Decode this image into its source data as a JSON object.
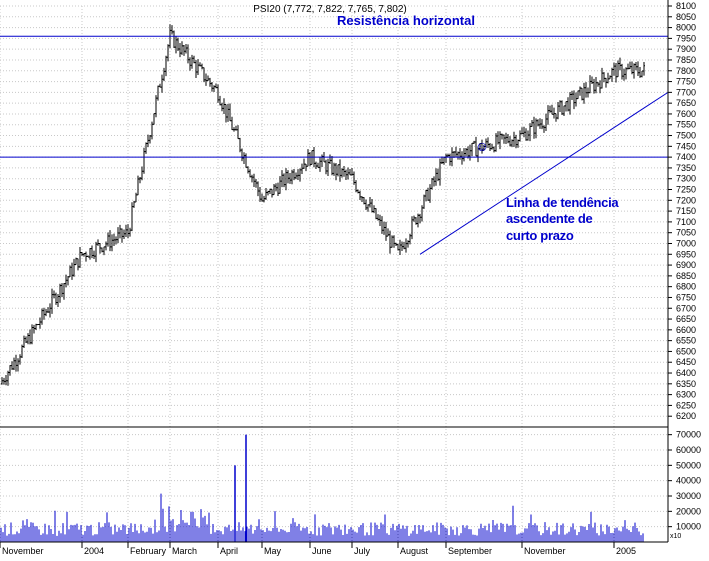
{
  "chart_data": {
    "type": "candlestick",
    "title": "PSI20 (7,772, 7,822, 7,765, 7,802)",
    "xlabel": "",
    "ylabel": "",
    "ylim": [
      6150,
      8100
    ],
    "x_tick_labels": [
      "November",
      "2004",
      "February",
      "March",
      "April",
      "May",
      "June",
      "July",
      "August",
      "September",
      "November",
      "2005"
    ],
    "y_ticks": [
      6200,
      6250,
      6300,
      6350,
      6400,
      6450,
      6500,
      6550,
      6600,
      6650,
      6700,
      6750,
      6800,
      6850,
      6900,
      6950,
      7000,
      7050,
      7100,
      7150,
      7200,
      7250,
      7300,
      7350,
      7400,
      7450,
      7500,
      7550,
      7600,
      7650,
      7700,
      7750,
      7800,
      7850,
      7900,
      7950,
      8000,
      8050,
      8100
    ],
    "volume": {
      "ylim": [
        0,
        75000
      ],
      "y_ticks": [
        10000,
        20000,
        30000,
        40000,
        50000,
        60000,
        70000
      ],
      "axis_scale_label": "x10",
      "spikes": [
        {
          "month": "April",
          "value": 70000
        },
        {
          "month": "April",
          "value": 50000
        }
      ]
    },
    "price_path": [
      {
        "month": "November",
        "close": 6350
      },
      {
        "month": "2004",
        "close": 6950
      },
      {
        "month": "February",
        "close": 7050
      },
      {
        "month": "March",
        "close": 7960
      },
      {
        "month": "April",
        "close": 7700
      },
      {
        "month": "May",
        "close": 7200
      },
      {
        "month": "June",
        "close": 7400
      },
      {
        "month": "July",
        "close": 7300
      },
      {
        "month": "August",
        "close": 6950
      },
      {
        "month": "September",
        "close": 7400
      },
      {
        "month": "November",
        "close": 7500
      },
      {
        "month": "2005",
        "close": 7800
      }
    ],
    "annotations": {
      "resistance": {
        "label": "Resistência horizontal",
        "y": 7960
      },
      "support": {
        "y": 7400
      },
      "trendline": {
        "label_lines": [
          "Linha de tendência",
          "ascendente de",
          "curto prazo"
        ],
        "from": {
          "month": "August",
          "value": 6950
        },
        "to": {
          "month": "2005",
          "value": 7700
        }
      },
      "smiley": "☺"
    },
    "colors": {
      "candles": "#000000",
      "volume": "#0000cc",
      "lines": "#0000cc",
      "annotation_text": "#0000cc",
      "grid": "#c8c8c8"
    },
    "grid": true
  }
}
